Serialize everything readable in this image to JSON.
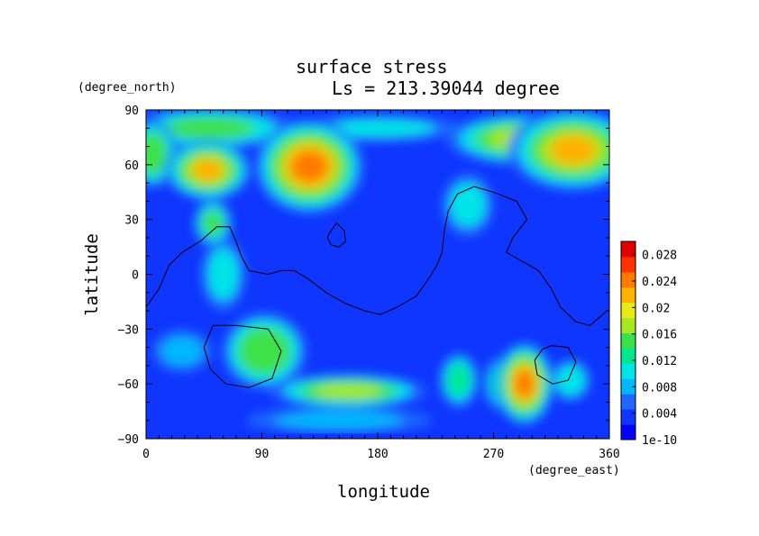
{
  "chart_data": {
    "type": "heatmap",
    "title": "surface stress",
    "subtitle": "Ls = 213.39044 degree",
    "xlabel": "longitude",
    "ylabel": "latitude",
    "x_units": "(degree_east)",
    "y_units": "(degree_north)",
    "xlim": [
      0,
      360
    ],
    "ylim": [
      -90,
      90
    ],
    "x_ticks": [
      "0",
      "90",
      "180",
      "270",
      "360"
    ],
    "y_ticks": [
      "90",
      "60",
      "30",
      "0",
      "−30",
      "−60",
      "−90"
    ],
    "colorbar": {
      "min": 1e-10,
      "max": 0.03,
      "tick_labels": [
        "1e-10",
        "0.004",
        "0.008",
        "0.012",
        "0.016",
        "0.02",
        "0.024",
        "0.028"
      ],
      "tick_values": [
        0,
        0.004,
        0.008,
        0.012,
        0.016,
        0.02,
        0.024,
        0.028
      ],
      "colors": [
        "#0000ff",
        "#0f35ff",
        "#1e68ff",
        "#00b8ff",
        "#00e4e8",
        "#00e78f",
        "#3ce14a",
        "#a6e824",
        "#e8e81a",
        "#ffb100",
        "#ff7800",
        "#ff3300",
        "#e00000"
      ]
    },
    "hotspots": [
      {
        "lon": 48,
        "lat": 57,
        "value": 0.022,
        "rlon": 12,
        "rlat": 6
      },
      {
        "lon": 127,
        "lat": 59,
        "value": 0.025,
        "rlon": 13,
        "rlat": 8
      },
      {
        "lon": 332,
        "lat": 68,
        "value": 0.022,
        "rlon": 18,
        "rlat": 8
      },
      {
        "lon": 290,
        "lat": 74,
        "value": 0.018,
        "rlon": 24,
        "rlat": 6
      },
      {
        "lon": 50,
        "lat": 80,
        "value": 0.014,
        "rlon": 35,
        "rlat": 6
      },
      {
        "lon": 5,
        "lat": 66,
        "value": 0.015,
        "rlon": 8,
        "rlat": 8
      },
      {
        "lon": 52,
        "lat": 28,
        "value": 0.014,
        "rlon": 8,
        "rlat": 7
      },
      {
        "lon": 92,
        "lat": -42,
        "value": 0.016,
        "rlon": 14,
        "rlat": 9
      },
      {
        "lon": 157,
        "lat": -64,
        "value": 0.018,
        "rlon": 26,
        "rlat": 4
      },
      {
        "lon": 294,
        "lat": -60,
        "value": 0.025,
        "rlon": 7,
        "rlat": 7
      },
      {
        "lon": 243,
        "lat": -58,
        "value": 0.013,
        "rlon": 8,
        "rlat": 8
      },
      {
        "lon": 276,
        "lat": -60,
        "value": 0.012,
        "rlon": 7,
        "rlat": 8
      },
      {
        "lon": 330,
        "lat": -58,
        "value": 0.011,
        "rlon": 8,
        "rlat": 6
      },
      {
        "lon": 250,
        "lat": 38,
        "value": 0.01,
        "rlon": 14,
        "rlat": 12
      },
      {
        "lon": 60,
        "lat": 0,
        "value": 0.01,
        "rlon": 12,
        "rlat": 14
      },
      {
        "lon": 28,
        "lat": -42,
        "value": 0.008,
        "rlon": 16,
        "rlat": 8
      },
      {
        "lon": 180,
        "lat": 80,
        "value": 0.01,
        "rlon": 45,
        "rlat": 5
      },
      {
        "lon": 150,
        "lat": -80,
        "value": 0.008,
        "rlon": 50,
        "rlat": 5
      }
    ],
    "outlines": [
      [
        [
          0,
          -18
        ],
        [
          10,
          -8
        ],
        [
          18,
          5
        ],
        [
          28,
          12
        ],
        [
          42,
          18
        ],
        [
          55,
          26
        ],
        [
          65,
          26
        ],
        [
          70,
          18
        ],
        [
          74,
          10
        ],
        [
          80,
          2
        ],
        [
          95,
          0
        ],
        [
          105,
          2
        ],
        [
          115,
          2
        ],
        [
          125,
          -2
        ],
        [
          140,
          -10
        ],
        [
          155,
          -16
        ],
        [
          170,
          -20
        ],
        [
          182,
          -22
        ],
        [
          195,
          -18
        ],
        [
          210,
          -12
        ],
        [
          220,
          -2
        ],
        [
          226,
          5
        ],
        [
          230,
          12
        ],
        [
          232,
          25
        ],
        [
          235,
          35
        ],
        [
          242,
          44
        ],
        [
          255,
          48
        ],
        [
          270,
          45
        ],
        [
          288,
          40
        ],
        [
          296,
          30
        ],
        [
          285,
          20
        ],
        [
          280,
          12
        ],
        [
          290,
          8
        ],
        [
          305,
          2
        ],
        [
          315,
          -8
        ],
        [
          322,
          -18
        ],
        [
          334,
          -26
        ],
        [
          345,
          -28
        ],
        [
          358,
          -20
        ]
      ],
      [
        [
          70,
          -28
        ],
        [
          95,
          -30
        ],
        [
          105,
          -42
        ],
        [
          98,
          -57
        ],
        [
          80,
          -62
        ],
        [
          62,
          -60
        ],
        [
          50,
          -52
        ],
        [
          45,
          -40
        ],
        [
          52,
          -28
        ],
        [
          70,
          -28
        ]
      ],
      [
        [
          315,
          -39
        ],
        [
          328,
          -40
        ],
        [
          334,
          -48
        ],
        [
          328,
          -58
        ],
        [
          316,
          -60
        ],
        [
          304,
          -55
        ],
        [
          302,
          -47
        ],
        [
          308,
          -41
        ],
        [
          315,
          -39
        ]
      ],
      [
        [
          142,
          22
        ],
        [
          148,
          28
        ],
        [
          154,
          24
        ],
        [
          155,
          18
        ],
        [
          150,
          15
        ],
        [
          144,
          16
        ],
        [
          141,
          20
        ],
        [
          142,
          22
        ]
      ]
    ]
  }
}
